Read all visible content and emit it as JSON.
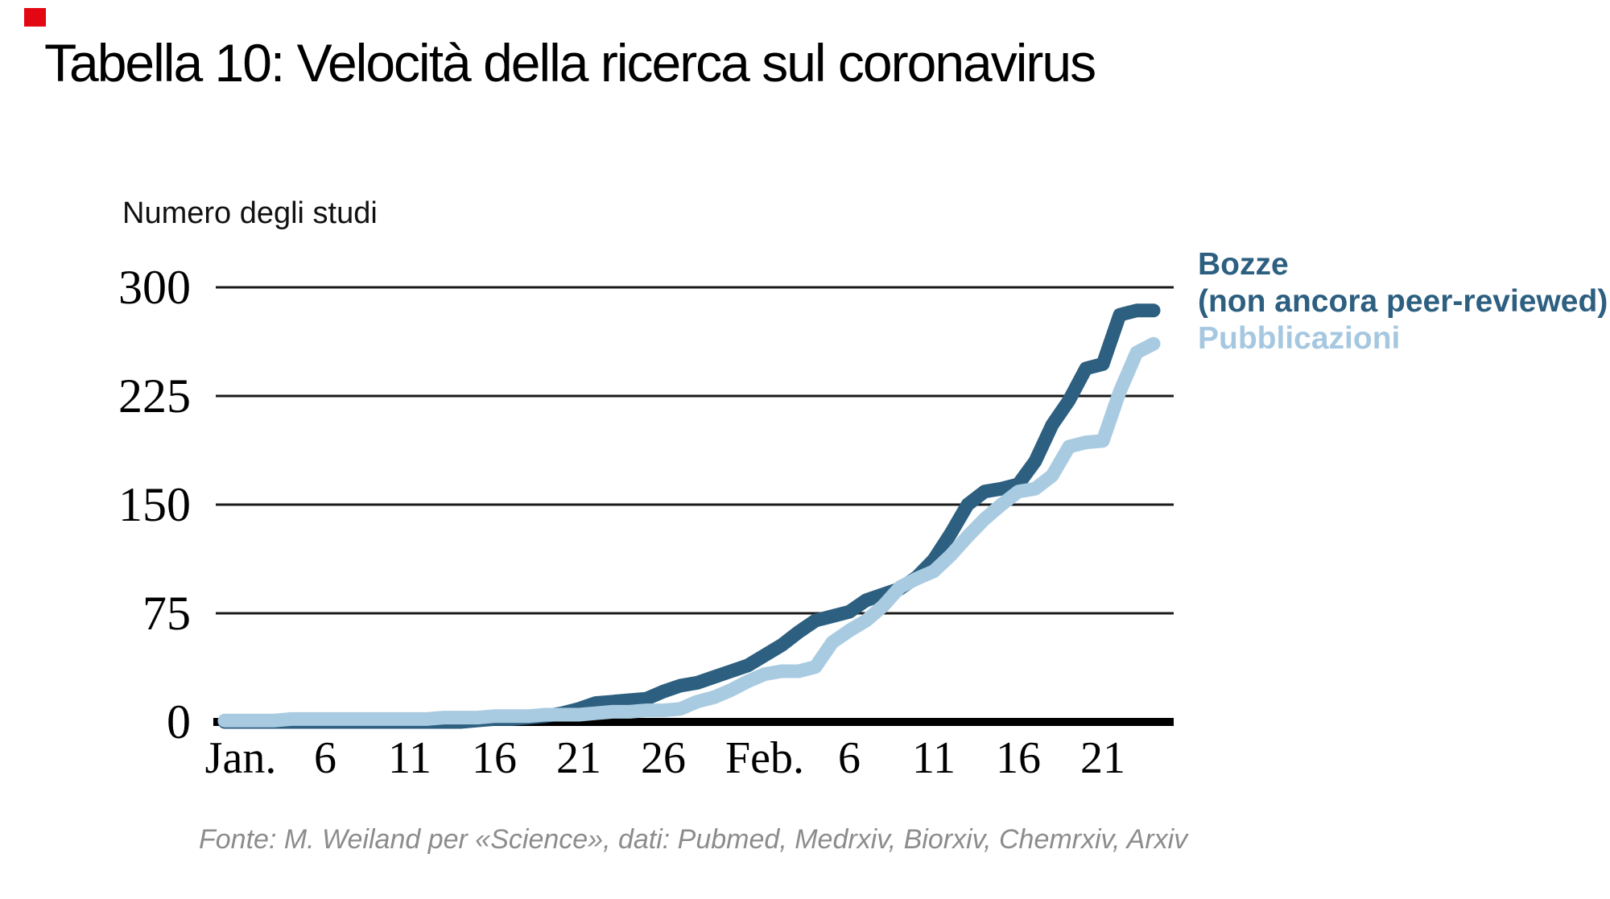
{
  "title": "Tabella 10: Velocità della ricerca sul coronavirus",
  "y_axis_title": "Numero degli studi",
  "accent_square_color": "#e30613",
  "legend": {
    "line1": "Bozze",
    "line2": "(non ancora peer-reviewed)",
    "line3": "Pubblicazioni"
  },
  "source": "Fonte: M. Weiland per «Science», dati: Pubmed, Medrxiv, Biorxiv, Chemrxiv, Arxiv",
  "colors": {
    "dark_line": "#2d5f80",
    "light_line": "#a9cbe1",
    "grid": "#1a1a1a",
    "axis": "#000000",
    "legend_dark": "#2d5f80",
    "legend_light": "#a5c8e0",
    "source_text": "#8c8c8c"
  },
  "chart_data": {
    "type": "line",
    "title": "Tabella 10: Velocità della ricerca sul coronavirus",
    "xlabel": "",
    "ylabel": "Numero degli studi",
    "ylim": [
      0,
      300
    ],
    "y_ticks": [
      0,
      75,
      150,
      225,
      300
    ],
    "grid": "horizontal",
    "legend_position": "right",
    "x_unit": "days since Jan 1 (x tick labels mark dates)",
    "x_tick_labels": [
      "Jan.",
      "6",
      "11",
      "16",
      "21",
      "26",
      "Feb.",
      "6",
      "11",
      "16",
      "21"
    ],
    "x_tick_days": [
      0,
      5,
      10,
      15,
      20,
      25,
      31,
      36,
      41,
      46,
      51
    ],
    "series": [
      {
        "name": "Bozze (non ancora peer-reviewed)",
        "color": "#2d5f80",
        "values": [
          0,
          0,
          0,
          0,
          0,
          0,
          0,
          0,
          0,
          0,
          0,
          0,
          0,
          0,
          1,
          2,
          2,
          3,
          4,
          6,
          9,
          13,
          14,
          15,
          16,
          21,
          25,
          27,
          31,
          35,
          39,
          46,
          53,
          62,
          70,
          73,
          76,
          84,
          88,
          92,
          100,
          112,
          130,
          150,
          159,
          161,
          164,
          180,
          205,
          222,
          244,
          247,
          281,
          284,
          284
        ]
      },
      {
        "name": "Pubblicazioni",
        "color": "#a9cbe1",
        "values": [
          1,
          1,
          1,
          2,
          2,
          2,
          2,
          2,
          2,
          2,
          2,
          2,
          3,
          3,
          3,
          4,
          4,
          4,
          5,
          5,
          5,
          6,
          7,
          7,
          8,
          8,
          9,
          14,
          17,
          22,
          28,
          33,
          35,
          35,
          38,
          55,
          63,
          70,
          80,
          93,
          99,
          104,
          115,
          128,
          140,
          150,
          159,
          161,
          170,
          190,
          193,
          194,
          228,
          255,
          261
        ]
      }
    ]
  }
}
